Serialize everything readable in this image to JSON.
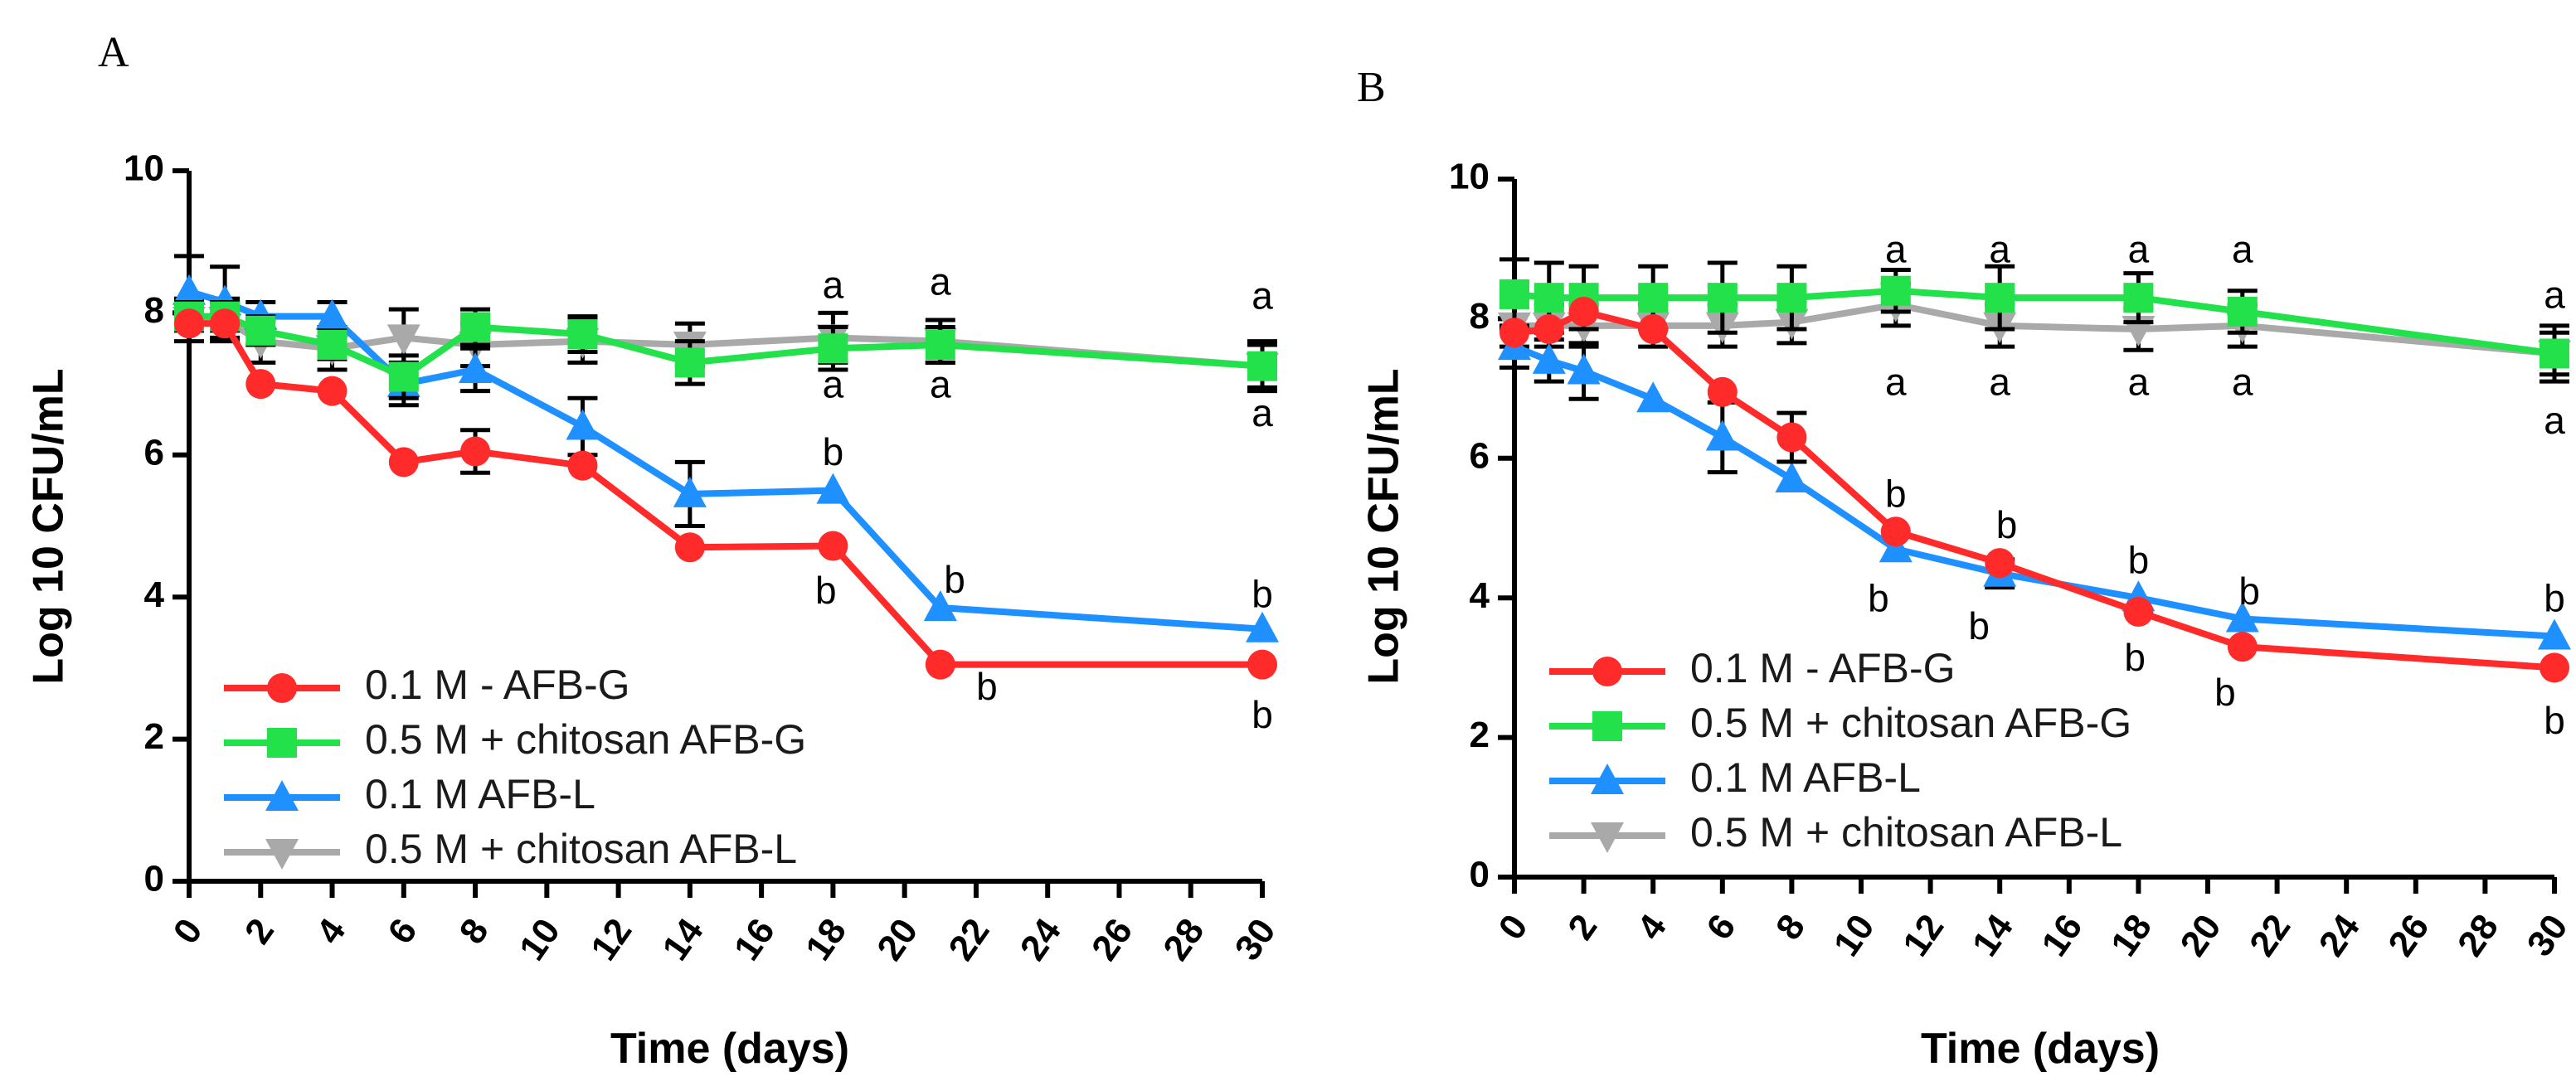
{
  "chart_data": [
    {
      "panel": "A",
      "type": "line",
      "xlabel": "Time (days)",
      "ylabel": "Log 10 CFU/mL",
      "xlim": [
        0,
        30
      ],
      "ylim": [
        0,
        10
      ],
      "xticks": [
        0,
        2,
        4,
        6,
        8,
        10,
        12,
        14,
        16,
        18,
        20,
        22,
        24,
        26,
        28,
        30
      ],
      "yticks": [
        0,
        2,
        4,
        6,
        8,
        10
      ],
      "legend_position": "bottom-left",
      "series": [
        {
          "name": "0.1 M - AFB-G",
          "color": "#ff2a2a",
          "marker": "circle",
          "x": [
            0,
            1,
            2,
            4,
            6,
            8,
            11,
            14,
            18,
            21,
            30
          ],
          "y": [
            7.85,
            7.85,
            7.0,
            6.9,
            5.9,
            6.05,
            5.85,
            4.7,
            4.72,
            3.05,
            3.05
          ],
          "err": [
            0,
            0,
            0,
            0,
            0,
            0.3,
            0,
            0,
            0,
            0,
            0
          ]
        },
        {
          "name": "0.5 M + chitosan AFB-G",
          "color": "#22e14a",
          "marker": "square",
          "x": [
            0,
            1,
            2,
            4,
            6,
            8,
            11,
            14,
            18,
            21,
            30
          ],
          "y": [
            7.95,
            7.95,
            7.75,
            7.55,
            7.1,
            7.8,
            7.7,
            7.3,
            7.5,
            7.55,
            7.25
          ],
          "err": [
            0.2,
            0.2,
            0.2,
            0.2,
            0.3,
            0.25,
            0.25,
            0.3,
            0.3,
            0.25,
            0.35
          ]
        },
        {
          "name": "0.1 M AFB-L",
          "color": "#1e90ff",
          "marker": "triangle",
          "x": [
            0,
            1,
            2,
            4,
            6,
            8,
            11,
            14,
            18,
            21,
            30
          ],
          "y": [
            8.3,
            8.15,
            7.95,
            7.95,
            7.0,
            7.2,
            6.4,
            5.45,
            5.5,
            3.85,
            3.55
          ],
          "err": [
            0.5,
            0.5,
            0.2,
            0.2,
            0.3,
            0.3,
            0.4,
            0.45,
            0,
            0,
            0
          ]
        },
        {
          "name": "0.5 M + chitosan AFB-L",
          "color": "#a9a9a9",
          "marker": "triangle-down",
          "x": [
            0,
            1,
            2,
            4,
            6,
            8,
            11,
            14,
            18,
            21,
            30
          ],
          "y": [
            7.9,
            7.9,
            7.6,
            7.5,
            7.65,
            7.55,
            7.6,
            7.55,
            7.65,
            7.6,
            7.25
          ],
          "err": [
            0.3,
            0.3,
            0.3,
            0.3,
            0.4,
            0.3,
            0.3,
            0.3,
            0.35,
            0.3,
            0.3
          ]
        }
      ],
      "annotations": [
        {
          "text": "a",
          "x": 18,
          "y": 8.35
        },
        {
          "text": "a",
          "x": 18,
          "y": 6.95
        },
        {
          "text": "a",
          "x": 21,
          "y": 8.4
        },
        {
          "text": "a",
          "x": 21,
          "y": 6.95
        },
        {
          "text": "a",
          "x": 30,
          "y": 8.2
        },
        {
          "text": "a",
          "x": 30,
          "y": 6.55
        },
        {
          "text": "b",
          "x": 18,
          "y": 6.0
        },
        {
          "text": "b",
          "x": 17.8,
          "y": 4.05
        },
        {
          "text": "b",
          "x": 21.4,
          "y": 4.2
        },
        {
          "text": "b",
          "x": 22.3,
          "y": 2.7
        },
        {
          "text": "b",
          "x": 30,
          "y": 4.0
        },
        {
          "text": "b",
          "x": 30,
          "y": 2.3
        }
      ]
    },
    {
      "panel": "B",
      "type": "line",
      "xlabel": "Time (days)",
      "ylabel": "Log 10 CFU/mL",
      "xlim": [
        0,
        30
      ],
      "ylim": [
        0,
        10
      ],
      "xticks": [
        0,
        2,
        4,
        6,
        8,
        10,
        12,
        14,
        16,
        18,
        20,
        22,
        24,
        26,
        28,
        30
      ],
      "yticks": [
        0,
        2,
        4,
        6,
        8,
        10
      ],
      "legend_position": "bottom-left",
      "series": [
        {
          "name": "0.1 M - AFB-G",
          "color": "#ff2a2a",
          "marker": "circle",
          "x": [
            0,
            1,
            2,
            4,
            6,
            8,
            11,
            14,
            18,
            21,
            30
          ],
          "y": [
            7.8,
            7.85,
            8.1,
            7.85,
            6.95,
            6.3,
            4.95,
            4.5,
            3.8,
            3.3,
            3.0
          ],
          "err": [
            0,
            0,
            0,
            0,
            0,
            0.35,
            0,
            0,
            0,
            0,
            0
          ]
        },
        {
          "name": "0.5 M + chitosan AFB-G",
          "color": "#22e14a",
          "marker": "square",
          "x": [
            0,
            1,
            2,
            4,
            6,
            8,
            11,
            14,
            18,
            21,
            30
          ],
          "y": [
            8.35,
            8.3,
            8.3,
            8.3,
            8.3,
            8.3,
            8.4,
            8.3,
            8.3,
            8.1,
            7.5
          ],
          "err": [
            0.5,
            0.5,
            0.45,
            0.45,
            0.5,
            0.45,
            0.3,
            0.45,
            0.35,
            0.3,
            0.4
          ]
        },
        {
          "name": "0.1 M AFB-L",
          "color": "#1e90ff",
          "marker": "triangle",
          "x": [
            0,
            1,
            2,
            4,
            6,
            8,
            11,
            14,
            18,
            21,
            30
          ],
          "y": [
            7.6,
            7.4,
            7.25,
            6.85,
            6.3,
            5.7,
            4.7,
            4.35,
            4.0,
            3.7,
            3.45
          ],
          "err": [
            0.3,
            0.3,
            0.4,
            0,
            0.5,
            0,
            0,
            0.2,
            0,
            0,
            0
          ]
        },
        {
          "name": "0.5 M + chitosan AFB-L",
          "color": "#a9a9a9",
          "marker": "triangle-down",
          "x": [
            0,
            1,
            2,
            4,
            6,
            8,
            11,
            14,
            18,
            21,
            30
          ],
          "y": [
            7.9,
            7.9,
            7.9,
            7.9,
            7.9,
            7.95,
            8.2,
            7.9,
            7.85,
            7.9,
            7.5
          ],
          "err": [
            0.3,
            0.3,
            0.3,
            0.3,
            0.3,
            0.3,
            0.3,
            0.3,
            0.3,
            0.3,
            0.3
          ]
        }
      ],
      "annotations": [
        {
          "text": "a",
          "x": 11,
          "y": 8.95
        },
        {
          "text": "a",
          "x": 11,
          "y": 7.05
        },
        {
          "text": "a",
          "x": 14,
          "y": 8.95
        },
        {
          "text": "a",
          "x": 14,
          "y": 7.05
        },
        {
          "text": "a",
          "x": 18,
          "y": 8.95
        },
        {
          "text": "a",
          "x": 18,
          "y": 7.05
        },
        {
          "text": "a",
          "x": 21,
          "y": 8.95
        },
        {
          "text": "a",
          "x": 21,
          "y": 7.05
        },
        {
          "text": "a",
          "x": 30,
          "y": 8.3
        },
        {
          "text": "a",
          "x": 30,
          "y": 6.5
        },
        {
          "text": "b",
          "x": 11,
          "y": 5.45
        },
        {
          "text": "b",
          "x": 10.5,
          "y": 3.95
        },
        {
          "text": "b",
          "x": 14.2,
          "y": 5.0
        },
        {
          "text": "b",
          "x": 13.4,
          "y": 3.55
        },
        {
          "text": "b",
          "x": 18,
          "y": 4.5
        },
        {
          "text": "b",
          "x": 17.9,
          "y": 3.1
        },
        {
          "text": "b",
          "x": 21.2,
          "y": 4.05
        },
        {
          "text": "b",
          "x": 20.5,
          "y": 2.6
        },
        {
          "text": "b",
          "x": 30,
          "y": 3.95
        },
        {
          "text": "b",
          "x": 30,
          "y": 2.2
        }
      ]
    }
  ]
}
